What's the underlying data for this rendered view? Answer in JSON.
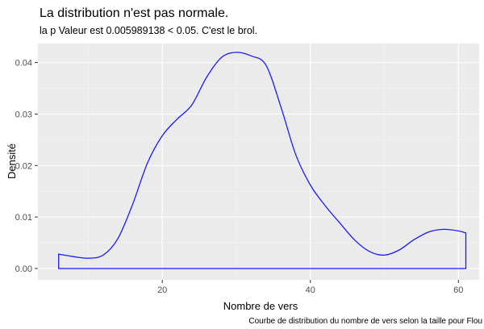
{
  "chart_data": {
    "type": "area",
    "title": "La distribution n'est pas normale.",
    "subtitle": "la p Valeur est  0.005989138  < 0.05. C'est le brol.",
    "xlabel": "Nombre de vers",
    "ylabel": "Densité",
    "caption": "Courbe de distribution du nombre de vers selon la taille pour  Flou",
    "xlim": [
      3.2,
      62.8
    ],
    "ylim": [
      -0.0022,
      0.0437
    ],
    "x_ticks": [
      20,
      40,
      60
    ],
    "x_tick_labels": [
      "20",
      "40",
      "60"
    ],
    "y_ticks": [
      0,
      0.01,
      0.02,
      0.03,
      0.04
    ],
    "y_tick_labels": [
      "0.00",
      "0.01",
      "0.02",
      "0.03",
      "0.04"
    ],
    "grid": true,
    "colors": {
      "line": "#1a1aff",
      "panel": "#ebebeb",
      "grid_major": "#ffffff",
      "grid_minor": "#f5f5f5"
    },
    "series": [
      {
        "x": [
          6,
          8,
          10,
          12,
          14,
          16,
          18,
          20,
          22,
          24,
          26,
          28,
          30,
          32,
          34,
          36,
          38,
          40,
          42,
          44,
          46,
          48,
          50,
          52,
          54,
          56,
          58,
          60,
          61
        ],
        "y": [
          0.0028,
          0.0023,
          0.002,
          0.0026,
          0.0058,
          0.0125,
          0.0205,
          0.0258,
          0.029,
          0.0318,
          0.0372,
          0.041,
          0.042,
          0.0413,
          0.0395,
          0.0315,
          0.0222,
          0.0162,
          0.0122,
          0.0088,
          0.0055,
          0.0033,
          0.0026,
          0.0036,
          0.0056,
          0.0071,
          0.0076,
          0.0073,
          0.0069
        ]
      }
    ]
  }
}
